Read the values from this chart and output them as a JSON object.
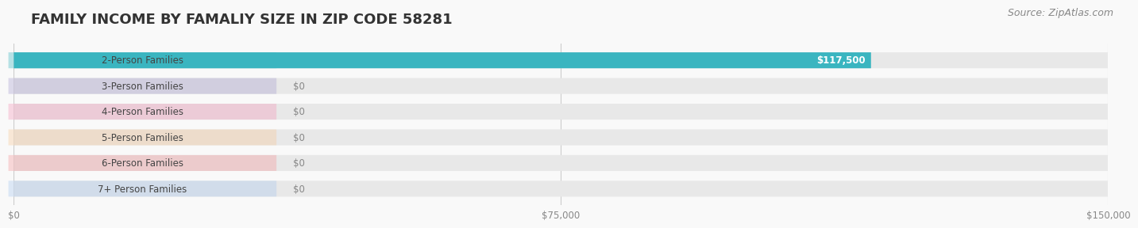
{
  "title": "FAMILY INCOME BY FAMALIY SIZE IN ZIP CODE 58281",
  "source": "Source: ZipAtlas.com",
  "categories": [
    "2-Person Families",
    "3-Person Families",
    "4-Person Families",
    "5-Person Families",
    "6-Person Families",
    "7+ Person Families"
  ],
  "values": [
    117500,
    0,
    0,
    0,
    0,
    0
  ],
  "bar_colors": [
    "#3ab5c0",
    "#a89ecf",
    "#f595b8",
    "#f7c897",
    "#f4979a",
    "#a8c8f0"
  ],
  "label_colors": [
    "#3ab5c0",
    "#a89ecf",
    "#f595b8",
    "#f7c897",
    "#f4979a",
    "#a8c8f0"
  ],
  "value_labels": [
    "$117,500",
    "$0",
    "$0",
    "$0",
    "$0",
    "$0"
  ],
  "xlim": [
    0,
    150000
  ],
  "xticks": [
    0,
    75000,
    150000
  ],
  "xtick_labels": [
    "$0",
    "$75,000",
    "$150,000"
  ],
  "background_color": "#f9f9f9",
  "bar_bg_color": "#e8e8e8",
  "title_fontsize": 13,
  "source_fontsize": 9
}
